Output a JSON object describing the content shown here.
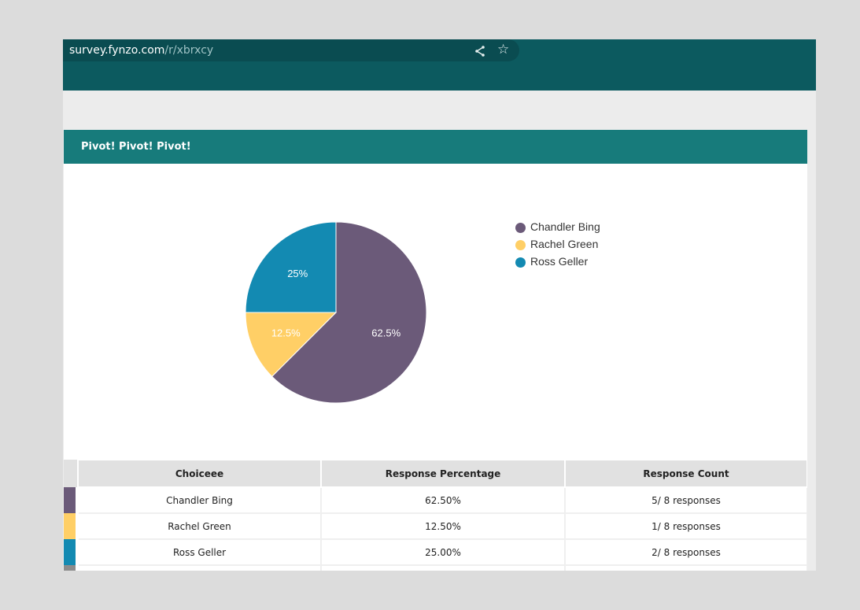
{
  "browser": {
    "url_domain": "survey.fynzo.com",
    "url_path": "/r/xbrxcy"
  },
  "section": {
    "title": "Pivot! Pivot! Pivot!"
  },
  "colors": {
    "chandler": "#6b5a79",
    "rachel": "#ffcf66",
    "ross": "#138ab2",
    "extra": "#8c8c8c",
    "header_bg": "#177b7b"
  },
  "chart_data": {
    "type": "pie",
    "categories": [
      "Chandler Bing",
      "Rachel Green",
      "Ross Geller"
    ],
    "values": [
      62.5,
      12.5,
      25
    ],
    "labels": [
      "62.5%",
      "12.5%",
      "25%"
    ],
    "colors": [
      "#6b5a79",
      "#ffcf66",
      "#138ab2"
    ],
    "legend_position": "right"
  },
  "legend": [
    {
      "label": "Chandler Bing",
      "color": "#6b5a79"
    },
    {
      "label": "Rachel Green",
      "color": "#ffcf66"
    },
    {
      "label": "Ross Geller",
      "color": "#138ab2"
    }
  ],
  "table": {
    "headers": [
      "Choiceee",
      "Response Percentage",
      "Response Count"
    ],
    "rows": [
      {
        "choice": "Chandler Bing",
        "percentage": "62.50%",
        "count": "5/ 8 responses",
        "color": "#6b5a79"
      },
      {
        "choice": "Rachel Green",
        "percentage": "12.50%",
        "count": "1/ 8 responses",
        "color": "#ffcf66"
      },
      {
        "choice": "Ross Geller",
        "percentage": "25.00%",
        "count": "2/ 8 responses",
        "color": "#138ab2"
      }
    ]
  }
}
